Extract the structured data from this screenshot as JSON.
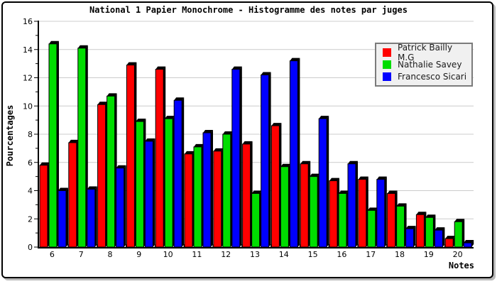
{
  "chart_data": {
    "type": "bar",
    "title": "National 1 Papier Monochrome - Histogramme des notes par juges",
    "xlabel": "Notes",
    "ylabel": "Pourcentages",
    "ylim": [
      0,
      16
    ],
    "y_major_ticks": [
      0,
      2,
      4,
      6,
      8,
      10,
      12,
      14,
      16
    ],
    "grid": true,
    "grid_color": "#cccccc",
    "axis_color": "#000000",
    "bar_style": "3d",
    "legend_position": "top-right",
    "categories": [
      "6",
      "7",
      "8",
      "9",
      "10",
      "11",
      "12",
      "13",
      "14",
      "15",
      "16",
      "17",
      "18",
      "19",
      "20"
    ],
    "series": [
      {
        "name": "Patrick Bailly M.G",
        "color": "#ff0000",
        "values": [
          5.8,
          7.4,
          10.1,
          12.9,
          12.6,
          6.6,
          6.8,
          7.3,
          8.6,
          5.9,
          4.7,
          4.8,
          3.8,
          2.3,
          0.6
        ]
      },
      {
        "name": "Nathalie Savey",
        "color": "#00dd00",
        "values": [
          14.4,
          14.1,
          10.7,
          8.9,
          9.1,
          7.1,
          8.0,
          3.8,
          5.7,
          5.0,
          3.8,
          2.6,
          2.9,
          2.1,
          1.8
        ]
      },
      {
        "name": "Francesco Sicari",
        "color": "#0000ff",
        "values": [
          4.0,
          4.1,
          5.6,
          7.5,
          10.4,
          8.1,
          12.6,
          12.2,
          13.2,
          9.1,
          5.9,
          4.8,
          1.3,
          1.2,
          0.3
        ]
      }
    ]
  }
}
